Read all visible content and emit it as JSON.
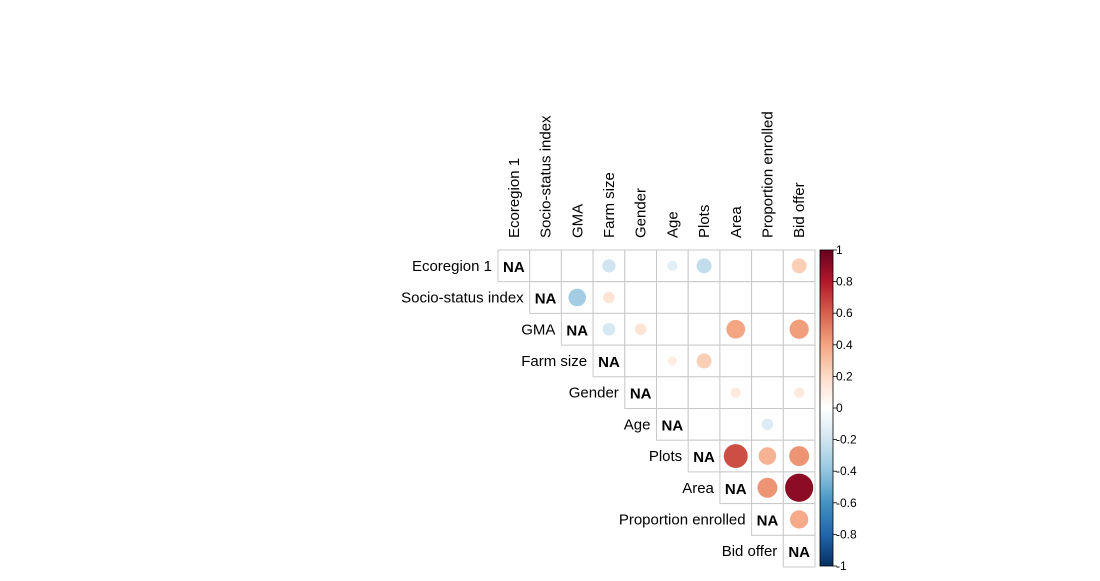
{
  "chart_data": {
    "type": "heatmap",
    "variables": [
      "Ecoregion 1",
      "Socio-status index",
      "GMA",
      "Farm size",
      "Gender",
      "Age",
      "Plots",
      "Area",
      "Proportion enrolled",
      "Bid offer"
    ],
    "diagonal_label": "NA",
    "matrix_layout": "upper-triangle",
    "value_range": [
      -1,
      1
    ],
    "colorbar": {
      "ticks": [
        "1",
        "0.8",
        "0.6",
        "0.4",
        "0.2",
        "0",
        "-0.2",
        "-0.4",
        "-0.6",
        "-0.8",
        "-1"
      ],
      "colors": [
        "#67001F",
        "#B2182B",
        "#D6604D",
        "#F4A582",
        "#FDDBC7",
        "#FFFFFF",
        "#D1E5F0",
        "#92C5DE",
        "#4393C3",
        "#2166AC",
        "#053061"
      ],
      "placement": "right"
    },
    "correlations": [
      {
        "row": "Ecoregion 1",
        "col": "Farm size",
        "value": -0.2
      },
      {
        "row": "Ecoregion 1",
        "col": "Age",
        "value": -0.12
      },
      {
        "row": "Ecoregion 1",
        "col": "Plots",
        "value": -0.25
      },
      {
        "row": "Ecoregion 1",
        "col": "Bid offer",
        "value": 0.25
      },
      {
        "row": "Socio-status index",
        "col": "GMA",
        "value": -0.35
      },
      {
        "row": "Socio-status index",
        "col": "Farm size",
        "value": 0.15
      },
      {
        "row": "GMA",
        "col": "Farm size",
        "value": -0.18
      },
      {
        "row": "GMA",
        "col": "Gender",
        "value": 0.15
      },
      {
        "row": "GMA",
        "col": "Area",
        "value": 0.4
      },
      {
        "row": "GMA",
        "col": "Bid offer",
        "value": 0.42
      },
      {
        "row": "Farm size",
        "col": "Age",
        "value": 0.1
      },
      {
        "row": "Farm size",
        "col": "Plots",
        "value": 0.25
      },
      {
        "row": "Gender",
        "col": "Area",
        "value": 0.12
      },
      {
        "row": "Gender",
        "col": "Bid offer",
        "value": 0.12
      },
      {
        "row": "Age",
        "col": "Proportion enrolled",
        "value": -0.15
      },
      {
        "row": "Plots",
        "col": "Area",
        "value": 0.65
      },
      {
        "row": "Plots",
        "col": "Proportion enrolled",
        "value": 0.35
      },
      {
        "row": "Plots",
        "col": "Bid offer",
        "value": 0.45
      },
      {
        "row": "Area",
        "col": "Proportion enrolled",
        "value": 0.45
      },
      {
        "row": "Area",
        "col": "Bid offer",
        "value": 0.9
      },
      {
        "row": "Proportion enrolled",
        "col": "Bid offer",
        "value": 0.38
      }
    ]
  }
}
